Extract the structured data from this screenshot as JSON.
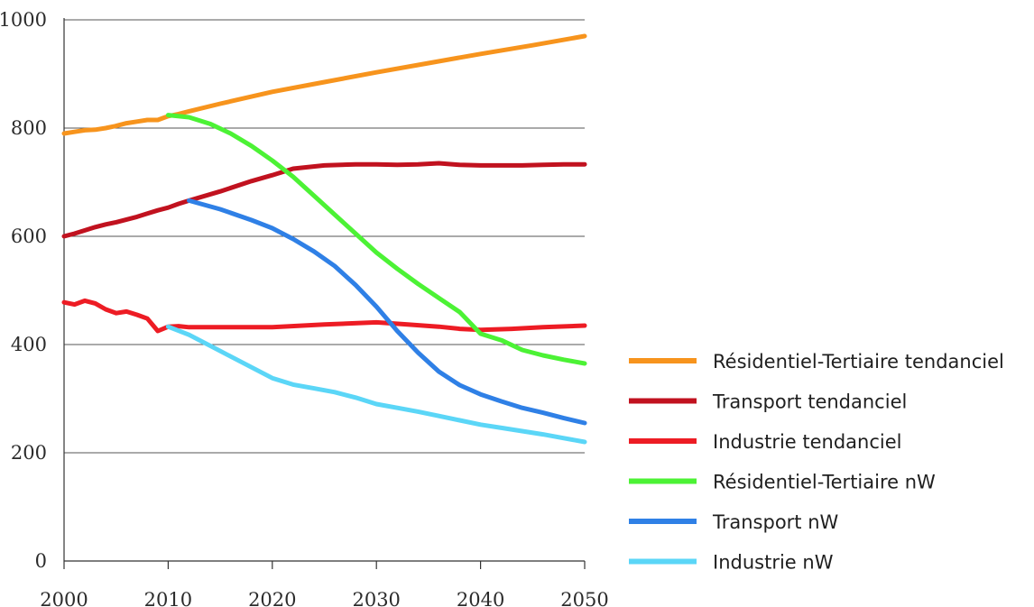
{
  "chart_data": {
    "type": "line",
    "title": "",
    "xlabel": "",
    "ylabel": "",
    "xlim": [
      2000,
      2050
    ],
    "ylim": [
      0,
      1000
    ],
    "xticks": [
      2000,
      2010,
      2020,
      2030,
      2040,
      2050
    ],
    "yticks": [
      0,
      200,
      400,
      600,
      800,
      1000
    ],
    "grid": "horizontal",
    "legend_position": "right",
    "series": [
      {
        "name": "Résidentiel-Tertiaire tendanciel",
        "color": "#f7941d",
        "points": [
          [
            2000,
            790
          ],
          [
            2001,
            793
          ],
          [
            2002,
            796
          ],
          [
            2003,
            797
          ],
          [
            2004,
            800
          ],
          [
            2005,
            804
          ],
          [
            2006,
            809
          ],
          [
            2007,
            812
          ],
          [
            2008,
            815
          ],
          [
            2009,
            815
          ],
          [
            2010,
            822
          ],
          [
            2011,
            826
          ],
          [
            2012,
            831
          ],
          [
            2015,
            845
          ],
          [
            2020,
            867
          ],
          [
            2025,
            885
          ],
          [
            2030,
            903
          ],
          [
            2035,
            920
          ],
          [
            2040,
            937
          ],
          [
            2045,
            953
          ],
          [
            2050,
            970
          ]
        ]
      },
      {
        "name": "Transport tendanciel",
        "color": "#c1121f",
        "points": [
          [
            2000,
            600
          ],
          [
            2001,
            605
          ],
          [
            2002,
            611
          ],
          [
            2003,
            617
          ],
          [
            2004,
            622
          ],
          [
            2005,
            626
          ],
          [
            2006,
            631
          ],
          [
            2007,
            636
          ],
          [
            2008,
            642
          ],
          [
            2009,
            648
          ],
          [
            2010,
            653
          ],
          [
            2011,
            660
          ],
          [
            2012,
            666
          ],
          [
            2015,
            683
          ],
          [
            2018,
            702
          ],
          [
            2020,
            713
          ],
          [
            2022,
            725
          ],
          [
            2025,
            731
          ],
          [
            2028,
            733
          ],
          [
            2030,
            733
          ],
          [
            2032,
            732
          ],
          [
            2034,
            733
          ],
          [
            2036,
            735
          ],
          [
            2038,
            732
          ],
          [
            2040,
            731
          ],
          [
            2042,
            731
          ],
          [
            2044,
            731
          ],
          [
            2046,
            732
          ],
          [
            2048,
            733
          ],
          [
            2050,
            733
          ]
        ]
      },
      {
        "name": "Industrie tendanciel",
        "color": "#ed1c24",
        "points": [
          [
            2000,
            478
          ],
          [
            2001,
            474
          ],
          [
            2002,
            481
          ],
          [
            2003,
            476
          ],
          [
            2004,
            465
          ],
          [
            2005,
            458
          ],
          [
            2006,
            461
          ],
          [
            2007,
            455
          ],
          [
            2008,
            448
          ],
          [
            2009,
            425
          ],
          [
            2010,
            433
          ],
          [
            2011,
            434
          ],
          [
            2012,
            432
          ],
          [
            2015,
            432
          ],
          [
            2020,
            432
          ],
          [
            2025,
            437
          ],
          [
            2030,
            441
          ],
          [
            2033,
            437
          ],
          [
            2036,
            433
          ],
          [
            2038,
            429
          ],
          [
            2040,
            427
          ],
          [
            2043,
            429
          ],
          [
            2046,
            432
          ],
          [
            2050,
            435
          ]
        ]
      },
      {
        "name": "Résidentiel-Tertiaire nW",
        "color": "#4cf235",
        "points": [
          [
            2010,
            824
          ],
          [
            2012,
            820
          ],
          [
            2014,
            808
          ],
          [
            2016,
            790
          ],
          [
            2018,
            767
          ],
          [
            2020,
            740
          ],
          [
            2022,
            710
          ],
          [
            2024,
            675
          ],
          [
            2026,
            640
          ],
          [
            2028,
            605
          ],
          [
            2030,
            570
          ],
          [
            2032,
            540
          ],
          [
            2034,
            512
          ],
          [
            2036,
            486
          ],
          [
            2038,
            460
          ],
          [
            2040,
            420
          ],
          [
            2042,
            408
          ],
          [
            2044,
            390
          ],
          [
            2046,
            380
          ],
          [
            2048,
            372
          ],
          [
            2050,
            365
          ]
        ]
      },
      {
        "name": "Transport nW",
        "color": "#2f80e6",
        "points": [
          [
            2012,
            666
          ],
          [
            2015,
            650
          ],
          [
            2018,
            630
          ],
          [
            2020,
            615
          ],
          [
            2022,
            595
          ],
          [
            2024,
            572
          ],
          [
            2026,
            545
          ],
          [
            2028,
            510
          ],
          [
            2030,
            470
          ],
          [
            2032,
            425
          ],
          [
            2034,
            385
          ],
          [
            2036,
            350
          ],
          [
            2038,
            325
          ],
          [
            2040,
            308
          ],
          [
            2042,
            295
          ],
          [
            2044,
            283
          ],
          [
            2046,
            274
          ],
          [
            2048,
            264
          ],
          [
            2050,
            255
          ]
        ]
      },
      {
        "name": "Industrie nW",
        "color": "#5bd6f7",
        "points": [
          [
            2010,
            433
          ],
          [
            2012,
            418
          ],
          [
            2014,
            398
          ],
          [
            2016,
            378
          ],
          [
            2018,
            358
          ],
          [
            2020,
            338
          ],
          [
            2022,
            326
          ],
          [
            2024,
            319
          ],
          [
            2026,
            312
          ],
          [
            2028,
            302
          ],
          [
            2030,
            290
          ],
          [
            2032,
            283
          ],
          [
            2034,
            276
          ],
          [
            2036,
            268
          ],
          [
            2038,
            260
          ],
          [
            2040,
            252
          ],
          [
            2042,
            246
          ],
          [
            2044,
            240
          ],
          [
            2046,
            234
          ],
          [
            2048,
            227
          ],
          [
            2050,
            220
          ]
        ]
      }
    ]
  }
}
